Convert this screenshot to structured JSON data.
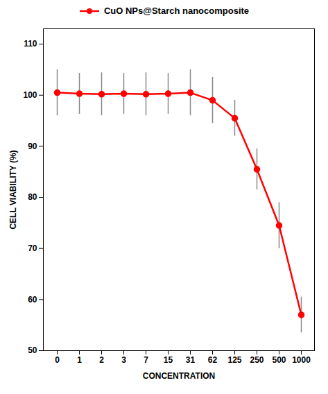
{
  "chart_data": {
    "type": "line",
    "xlabel": "CONCENTRATION",
    "ylabel": "CELL VIABILITY (%)",
    "categories": [
      "0",
      "1",
      "2",
      "3",
      "7",
      "15",
      "31",
      "62",
      "125",
      "250",
      "500",
      "1000"
    ],
    "series": [
      {
        "name": "CuO NPs@Starch nanocomposite",
        "color": "#ff0000",
        "marker": "circle",
        "values": [
          100.5,
          100.3,
          100.2,
          100.3,
          100.2,
          100.3,
          100.5,
          99.0,
          95.5,
          85.5,
          74.5,
          57.0
        ],
        "errors": [
          4.5,
          4.0,
          4.2,
          4.0,
          4.2,
          4.0,
          4.5,
          4.5,
          3.5,
          4.0,
          4.5,
          3.5
        ]
      }
    ],
    "ylim": [
      50,
      113
    ],
    "yticks": [
      50,
      60,
      70,
      80,
      90,
      100,
      110
    ],
    "grid": false,
    "legend": "top"
  }
}
